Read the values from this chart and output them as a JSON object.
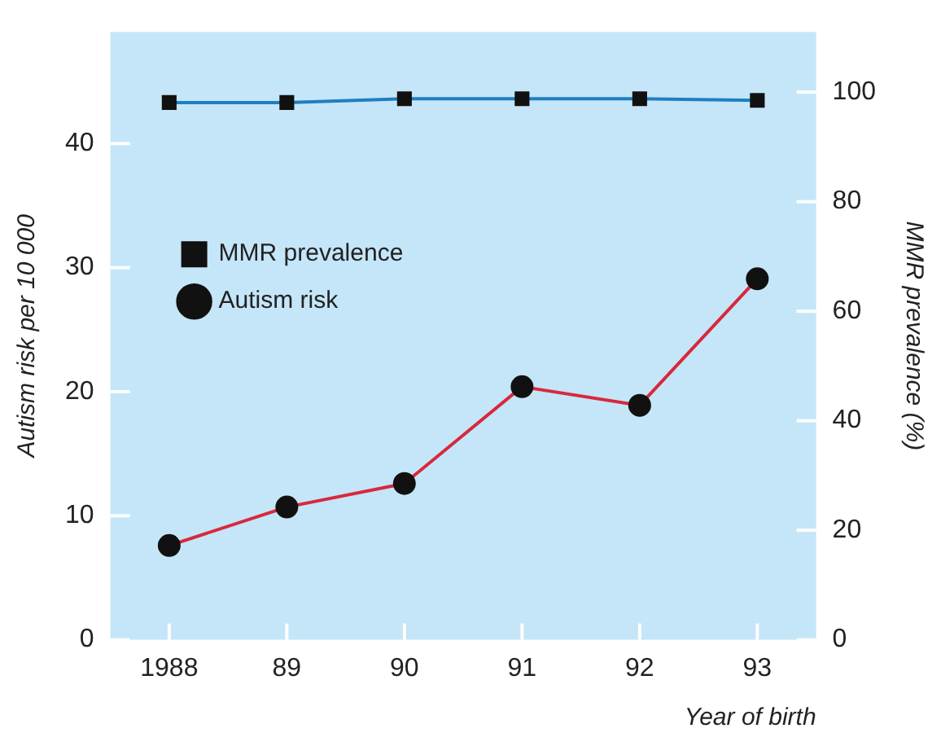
{
  "chart_data": {
    "type": "line",
    "xlabel": "Year of birth",
    "ylabel": "Autism risk per 10 000",
    "y2label": "MMR prevalence (%)",
    "categories": [
      "1988",
      "89",
      "90",
      "91",
      "92",
      "93"
    ],
    "series": [
      {
        "name": "MMR prevalence",
        "color": "#1f7fc0",
        "axis": "y2",
        "marker": "square",
        "values": [
          98.1,
          98.1,
          98.8,
          98.8,
          98.8,
          98.5
        ]
      },
      {
        "name": "Autism risk",
        "color": "#d8283c",
        "marker": "circle",
        "values": [
          7.6,
          10.7,
          12.6,
          20.4,
          18.9,
          29.1
        ]
      }
    ],
    "ylim": [
      0,
      49
    ],
    "yticks": [
      0,
      10,
      20,
      30,
      40
    ],
    "y2lim": [
      0,
      111
    ],
    "y2ticks": [
      0,
      20,
      40,
      60,
      80,
      100
    ],
    "grid": false,
    "legend": "left",
    "line_style": "solid"
  }
}
